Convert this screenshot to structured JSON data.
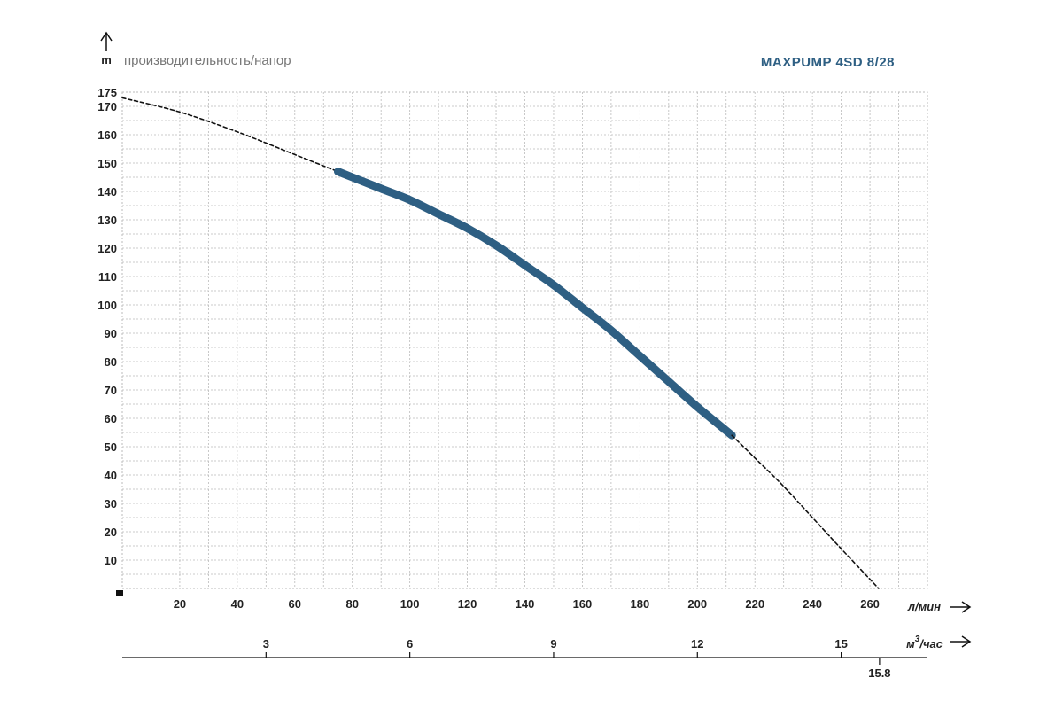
{
  "chart_data": {
    "type": "line",
    "title": "MAXPUMP 4SD 8/28",
    "subtitle": "производительность/напор",
    "y_unit": "m",
    "x_unit_primary": "л/мин",
    "x_unit_secondary": "м³/час",
    "x_unit_secondary_base": "м",
    "x_unit_secondary_sup": "3",
    "x_unit_secondary_rest": "/час",
    "ylim": [
      0,
      175
    ],
    "xlim": [
      0,
      280
    ],
    "y_ticks": [
      10,
      20,
      30,
      40,
      50,
      60,
      70,
      80,
      90,
      100,
      110,
      120,
      130,
      140,
      150,
      160,
      170,
      175
    ],
    "x_ticks": [
      20,
      40,
      60,
      80,
      100,
      120,
      140,
      160,
      180,
      200,
      220,
      240,
      260
    ],
    "x2_ticks": [
      3,
      6,
      9,
      12,
      15
    ],
    "x2_extra_tick": "15.8",
    "grid": true,
    "series": [
      {
        "style": "dashed",
        "color": "#111111",
        "x": [
          0,
          20,
          40,
          60,
          75
        ],
        "y": [
          173,
          168,
          161,
          153,
          147
        ]
      },
      {
        "style": "solid-thick",
        "color": "#2e5f83",
        "x": [
          75,
          80,
          90,
          100,
          110,
          120,
          130,
          140,
          150,
          160,
          170,
          180,
          190,
          200,
          212
        ],
        "y": [
          147,
          145,
          141,
          137,
          132,
          127,
          121,
          114,
          107,
          99,
          91,
          82,
          73,
          64,
          54
        ]
      },
      {
        "style": "dashed",
        "color": "#111111",
        "x": [
          212,
          220,
          230,
          240,
          250,
          263
        ],
        "y": [
          54,
          46,
          36,
          25,
          14,
          0
        ]
      }
    ]
  },
  "colors": {
    "title": "#2e5f83",
    "curve": "#2e5f83",
    "grid": "#bbbbbb",
    "axis": "#111111"
  }
}
